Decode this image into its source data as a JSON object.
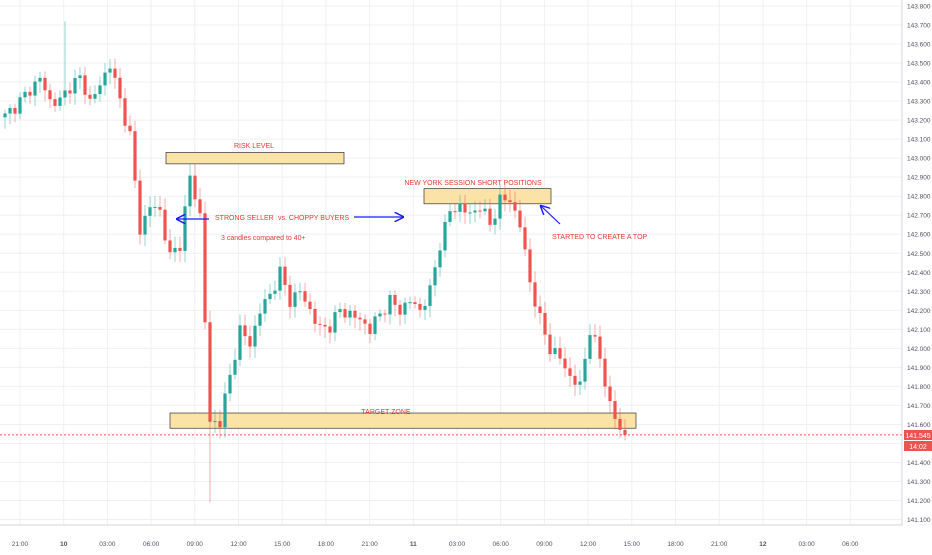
{
  "chart_data": {
    "type": "candlestick",
    "title": "",
    "xlabel": "",
    "ylabel": "",
    "ylim": [
      141.03,
      143.83
    ],
    "grid": true,
    "y_ticks": [
      "143.800",
      "143.700",
      "143.600",
      "143.500",
      "143.400",
      "143.300",
      "143.200",
      "143.100",
      "143.000",
      "142.900",
      "142.800",
      "142.700",
      "142.600",
      "142.500",
      "142.400",
      "142.300",
      "142.200",
      "142.100",
      "142.000",
      "141.900",
      "141.800",
      "141.700",
      "141.600",
      "141.500",
      "141.400",
      "141.300",
      "141.200",
      "141.100"
    ],
    "x_ticks": [
      "21:00",
      "10",
      "03:00",
      "06:00",
      "09:00",
      "12:00",
      "15:00",
      "18:00",
      "21:00",
      "11",
      "03:00",
      "06:00",
      "09:00",
      "12:00",
      "15:00",
      "18:00",
      "21:00",
      "12",
      "03:00",
      "06:00"
    ],
    "current_price": 141.545,
    "current_price_label": "141.545",
    "countdown_label": "14:02",
    "anchor_points": [
      [
        0,
        143.22
      ],
      [
        3,
        143.3
      ],
      [
        5,
        143.36
      ],
      [
        7,
        143.42
      ],
      [
        9,
        143.3
      ],
      [
        11,
        143.3
      ],
      [
        13,
        143.38
      ],
      [
        15,
        143.42
      ],
      [
        17,
        143.3
      ],
      [
        19,
        143.38
      ],
      [
        21,
        143.5
      ],
      [
        23,
        143.3
      ],
      [
        25,
        143.12
      ],
      [
        27,
        142.62
      ],
      [
        29,
        142.75
      ],
      [
        31,
        142.72
      ],
      [
        33,
        142.48
      ],
      [
        35,
        142.55
      ],
      [
        37,
        142.9
      ],
      [
        39,
        142.7
      ],
      [
        41,
        141.6
      ],
      [
        43,
        141.62
      ],
      [
        45,
        141.85
      ],
      [
        47,
        142.1
      ],
      [
        49,
        142.02
      ],
      [
        51,
        142.2
      ],
      [
        53,
        142.28
      ],
      [
        55,
        142.4
      ],
      [
        57,
        142.25
      ],
      [
        59,
        142.3
      ],
      [
        61,
        142.2
      ],
      [
        63,
        142.1
      ],
      [
        65,
        142.12
      ],
      [
        67,
        142.2
      ],
      [
        69,
        142.18
      ],
      [
        71,
        142.15
      ],
      [
        73,
        142.1
      ],
      [
        75,
        142.18
      ],
      [
        77,
        142.25
      ],
      [
        79,
        142.2
      ],
      [
        81,
        142.25
      ],
      [
        83,
        142.2
      ],
      [
        85,
        142.3
      ],
      [
        87,
        142.55
      ],
      [
        89,
        142.72
      ],
      [
        91,
        142.75
      ],
      [
        93,
        142.7
      ],
      [
        95,
        142.75
      ],
      [
        97,
        142.65
      ],
      [
        99,
        142.78
      ],
      [
        101,
        142.78
      ],
      [
        103,
        142.65
      ],
      [
        105,
        142.35
      ],
      [
        107,
        142.15
      ],
      [
        109,
        142.0
      ],
      [
        111,
        141.95
      ],
      [
        113,
        141.85
      ],
      [
        115,
        141.8
      ],
      [
        117,
        142.1
      ],
      [
        119,
        141.95
      ],
      [
        121,
        141.7
      ],
      [
        123,
        141.57
      ],
      [
        124,
        141.545
      ]
    ],
    "annotations": {
      "risk_label": "RISK LEVEL",
      "ny_label": "NEW YORK SESSION SHORT POSITIONS",
      "strong_seller": "STRONG SELLER",
      "choppy_buyers": "vs. CHOPPY BUYERS",
      "candles_note": "3 candles compared to 40+",
      "top_note": "STARTED TO CREATE A TOP",
      "target_label": "TARGET ZONE"
    },
    "colors": {
      "up": "#26a69a",
      "down": "#ef5350",
      "zone_fill": "#fbe3a8",
      "zone_border": "#333333",
      "annotation_text": "#e53935",
      "arrow": "#1a1aff",
      "price_line": "#ef5350",
      "grid": "#eef0f3"
    }
  }
}
